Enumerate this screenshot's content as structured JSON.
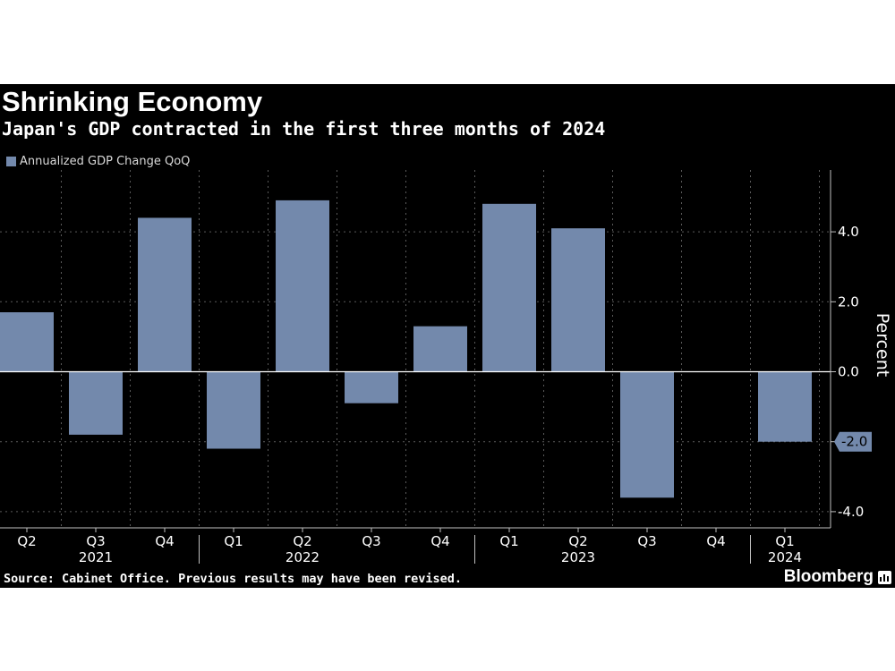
{
  "header": {
    "title": "Shrinking Economy",
    "subtitle": "Japan's GDP contracted in the first three months of 2024"
  },
  "legend": {
    "label": "Annualized GDP Change QoQ",
    "color": "#7389ac"
  },
  "footer": {
    "source": "Source: Cabinet Office. Previous results may have been revised.",
    "brand": "Bloomberg"
  },
  "chart_data": {
    "type": "bar",
    "title": "Shrinking Economy",
    "subtitle": "Japan's GDP contracted in the first three months of 2024",
    "categories": [
      "Q2 2021",
      "Q3 2021",
      "Q4 2021",
      "Q1 2022",
      "Q2 2022",
      "Q3 2022",
      "Q4 2022",
      "Q1 2023",
      "Q2 2023",
      "Q3 2023",
      "Q4 2023",
      "Q1 2024"
    ],
    "series": [
      {
        "name": "Annualized GDP Change QoQ",
        "values": [
          1.7,
          -1.8,
          4.4,
          -2.2,
          4.9,
          -0.9,
          1.3,
          4.8,
          4.1,
          -3.6,
          0.0,
          -2.0
        ],
        "color": "#7389ac"
      }
    ],
    "x_tick_labels": [
      "Q2",
      "Q3",
      "Q4",
      "Q1",
      "Q2",
      "Q3",
      "Q4",
      "Q1",
      "Q2",
      "Q3",
      "Q4",
      "Q1"
    ],
    "x_year_labels": [
      {
        "label": "2021",
        "index": 1
      },
      {
        "label": "2022",
        "index": 4
      },
      {
        "label": "2023",
        "index": 8
      },
      {
        "label": "2024",
        "index": 11
      }
    ],
    "ylabel": "Percent",
    "y_ticks": [
      4.0,
      2.0,
      0.0,
      -2.0,
      -4.0
    ],
    "y_tick_labels": [
      "4.0",
      "2.0",
      "0.0",
      "-2.0",
      "-4.0"
    ],
    "ylim": [
      -4.5,
      5.7
    ],
    "y_axis_position": "right",
    "highlighted_value_label": "-2.0",
    "grid": true,
    "legend_position": "top-left"
  }
}
